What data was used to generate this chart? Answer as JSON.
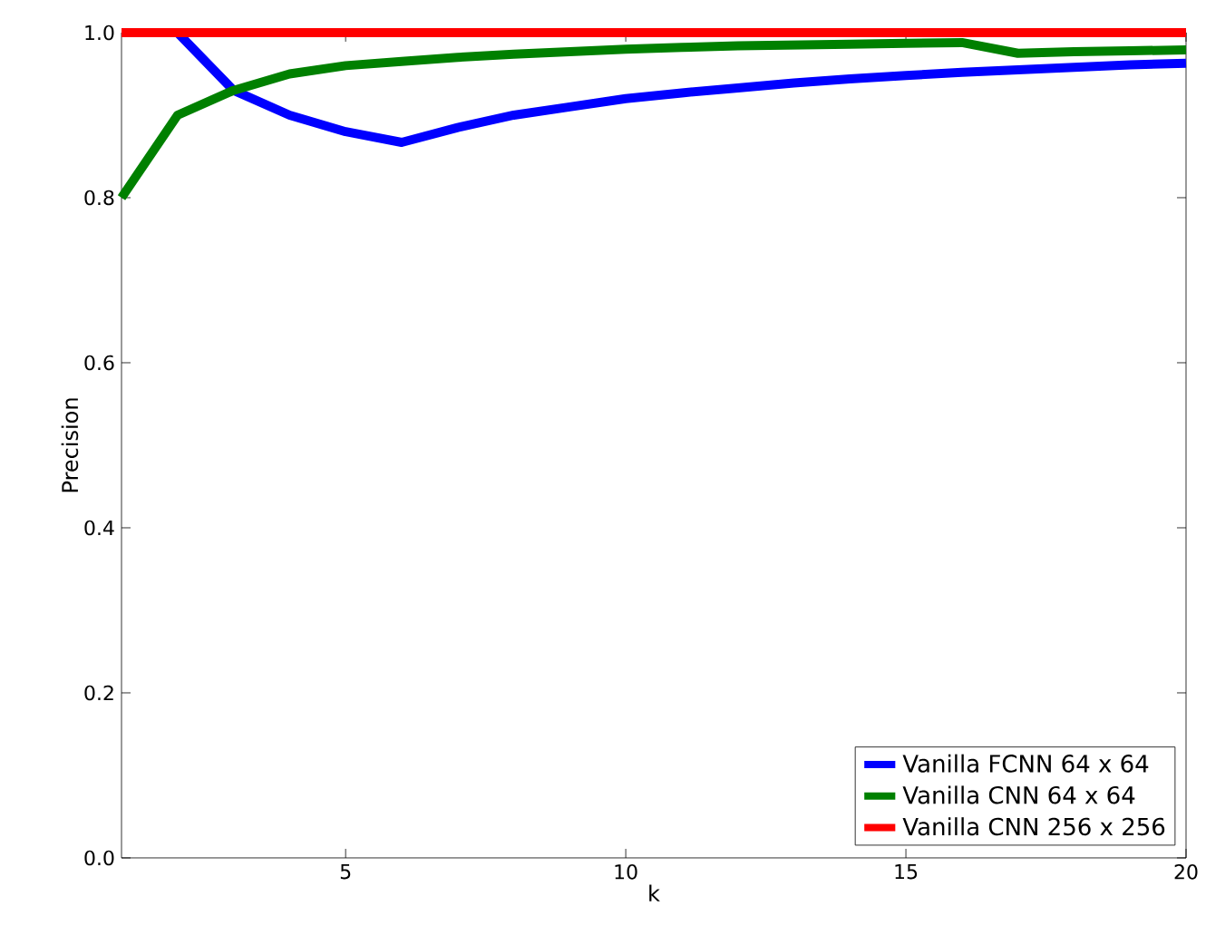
{
  "chart_data": {
    "type": "line",
    "xlabel": "k",
    "ylabel": "Precision",
    "x": [
      1,
      2,
      3,
      4,
      5,
      6,
      7,
      8,
      9,
      10,
      11,
      12,
      13,
      14,
      15,
      16,
      17,
      18,
      19,
      20
    ],
    "xlim": [
      1,
      20
    ],
    "ylim": [
      0,
      1
    ],
    "xticks": [
      5,
      10,
      15,
      20
    ],
    "yticks": [
      {
        "value": 0,
        "label": "0.0"
      },
      {
        "value": 0.2,
        "label": "0.2"
      },
      {
        "value": 0.4,
        "label": "0.4"
      },
      {
        "value": 0.6,
        "label": "0.6"
      },
      {
        "value": 0.8,
        "label": "0.8"
      },
      {
        "value": 1,
        "label": "1.0"
      }
    ],
    "grid": false,
    "legend": "bottom right",
    "marker": "none",
    "line_style": "solid",
    "series": [
      {
        "name": "Vanilla FCNN 64 x 64",
        "color": "#0000ff",
        "values": [
          1.0,
          1.0,
          0.93,
          0.9,
          0.88,
          0.867,
          0.885,
          0.9,
          0.91,
          0.92,
          0.927,
          0.933,
          0.939,
          0.944,
          0.948,
          0.952,
          0.955,
          0.958,
          0.961,
          0.963
        ]
      },
      {
        "name": "Vanilla CNN 64 x 64",
        "color": "#008000",
        "values": [
          0.8,
          0.9,
          0.93,
          0.95,
          0.96,
          0.965,
          0.97,
          0.974,
          0.977,
          0.98,
          0.982,
          0.984,
          0.985,
          0.986,
          0.987,
          0.988,
          0.975,
          0.977,
          0.978,
          0.979
        ]
      },
      {
        "name": "Vanilla CNN 256 x 256",
        "color": "#ff0000",
        "values": [
          1,
          1,
          1,
          1,
          1,
          1,
          1,
          1,
          1,
          1,
          1,
          1,
          1,
          1,
          1,
          1,
          1,
          1,
          1,
          1
        ]
      }
    ]
  }
}
